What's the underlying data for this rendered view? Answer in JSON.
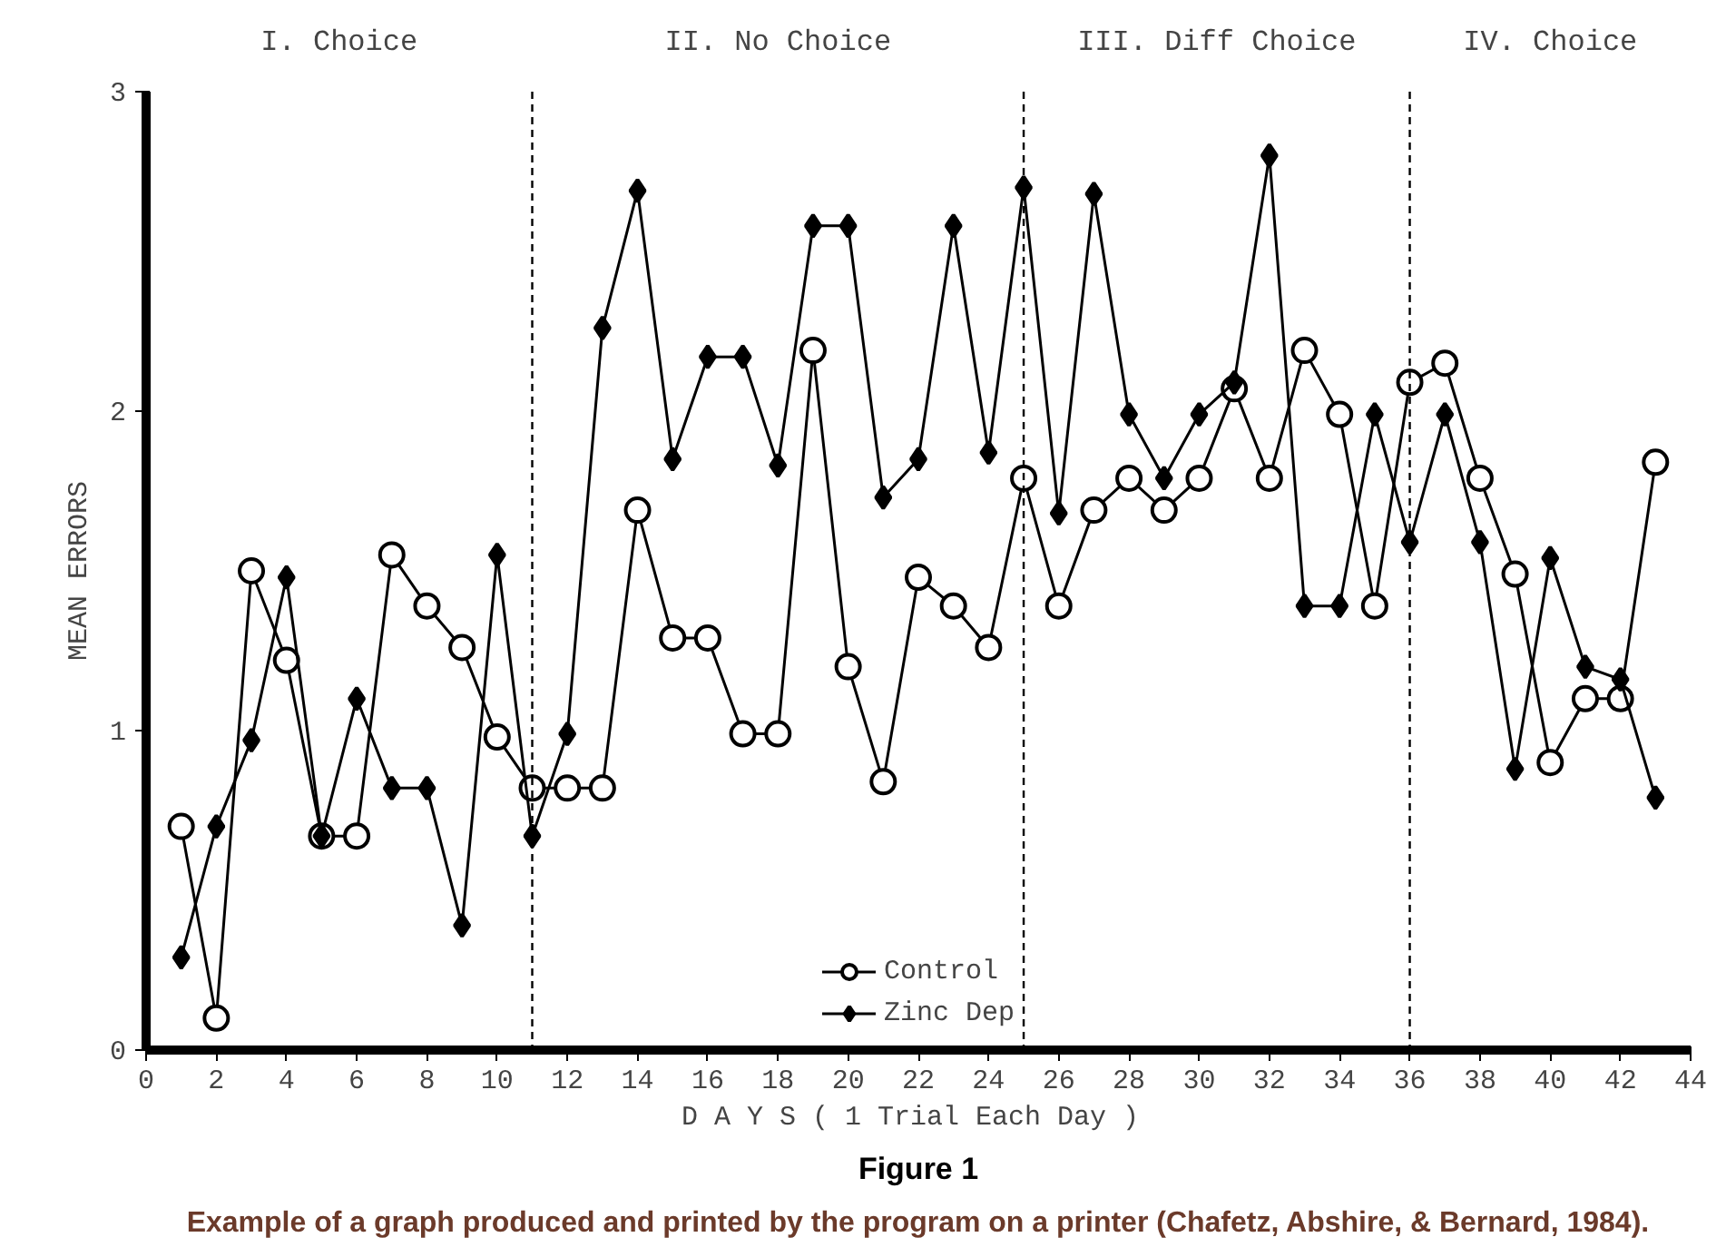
{
  "chart_data": {
    "type": "line",
    "xlabel": "D A Y S  ( 1 Trial Each Day )",
    "ylabel": "MEAN ERRORS",
    "x": [
      1,
      2,
      3,
      4,
      5,
      6,
      7,
      8,
      9,
      10,
      11,
      12,
      13,
      14,
      15,
      16,
      17,
      18,
      19,
      20,
      21,
      22,
      23,
      24,
      25,
      26,
      27,
      28,
      29,
      30,
      31,
      32,
      33,
      34,
      35,
      36,
      37,
      38,
      39,
      40,
      41,
      42,
      43
    ],
    "series": [
      {
        "name": "Control",
        "color": "#000000",
        "marker": "circle",
        "values": [
          0.7,
          0.1,
          1.5,
          1.22,
          0.67,
          0.67,
          1.55,
          1.39,
          1.26,
          0.98,
          0.82,
          0.82,
          0.82,
          1.69,
          1.29,
          1.29,
          0.99,
          0.99,
          2.19,
          1.2,
          0.84,
          1.48,
          1.39,
          1.26,
          1.79,
          1.39,
          1.69,
          1.79,
          1.69,
          1.79,
          2.07,
          1.79,
          2.19,
          1.99,
          1.39,
          2.09,
          2.15,
          1.79,
          1.49,
          0.9,
          1.1,
          1.1,
          1.84
        ]
      },
      {
        "name": "Zinc Dep",
        "color": "#000000",
        "marker": "diamond",
        "values": [
          0.29,
          0.7,
          0.97,
          1.48,
          0.67,
          1.1,
          0.82,
          0.82,
          0.39,
          1.55,
          0.67,
          0.99,
          2.26,
          2.69,
          1.85,
          2.17,
          2.17,
          1.83,
          2.58,
          2.58,
          1.73,
          1.85,
          2.58,
          1.87,
          2.7,
          1.68,
          2.68,
          1.99,
          1.79,
          1.99,
          2.09,
          2.8,
          1.39,
          1.39,
          1.99,
          1.59,
          1.99,
          1.59,
          0.88,
          1.54,
          1.2,
          1.16,
          0.79
        ]
      }
    ],
    "xlim": [
      0,
      44
    ],
    "xticks": [
      0,
      2,
      4,
      6,
      8,
      10,
      12,
      14,
      16,
      18,
      20,
      22,
      24,
      26,
      28,
      30,
      32,
      34,
      36,
      38,
      40,
      42,
      44
    ],
    "ylim": [
      0,
      3
    ],
    "yticks": [
      0,
      1,
      2,
      3
    ],
    "ref_lines": [
      {
        "axis": "x",
        "value": 11,
        "line_style": "dashed"
      },
      {
        "axis": "x",
        "value": 25,
        "line_style": "dashed"
      },
      {
        "axis": "x",
        "value": 36,
        "line_style": "dashed"
      }
    ],
    "annotations": [
      "I. Choice",
      "II. No Choice",
      "III. Diff Choice",
      "IV. Choice",
      "Figure 1",
      "Example of a graph produced and printed by the program on a printer (Chafetz, Abshire, & Bernard, 1984)."
    ],
    "legend": "bottom",
    "grid": false
  }
}
